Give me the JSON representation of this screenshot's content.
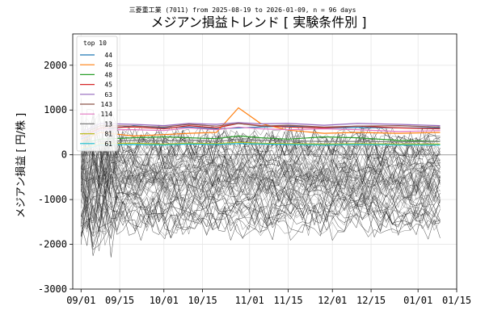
{
  "chart_data": {
    "type": "line",
    "subtitle": "三菱重工業 (7011) from 2025-08-19 to 2026-01-09, n = 96 days",
    "title": "メジアン損益トレンド [ 実験条件別 ]",
    "ylabel": "メジアン損益 [ 円/株 ]",
    "xlabel": "",
    "ylim": [
      -3000,
      2700
    ],
    "yticks": [
      2000,
      1000,
      0,
      -1000,
      -2000,
      -3000
    ],
    "xticks": [
      "09/01",
      "09/15",
      "10/01",
      "10/15",
      "11/01",
      "11/15",
      "12/01",
      "12/15",
      "01/01",
      "01/15"
    ],
    "x_range": [
      "2025-08-29",
      "2026-01-15"
    ],
    "grid": true,
    "legend": {
      "title": "top 10",
      "placement": "top-left"
    },
    "series": [
      {
        "name": "44",
        "color": "#1f77b4",
        "values": [
          350,
          550,
          650,
          600,
          620,
          580,
          600,
          620,
          640,
          600,
          610,
          600,
          600
        ]
      },
      {
        "name": "46",
        "color": "#ff7f0e",
        "values": [
          300,
          500,
          420,
          450,
          480,
          500,
          1050,
          700,
          550,
          480,
          500,
          480,
          500
        ]
      },
      {
        "name": "48",
        "color": "#2ca02c",
        "values": [
          250,
          350,
          380,
          400,
          380,
          360,
          420,
          380,
          350,
          400,
          380,
          320,
          300
        ]
      },
      {
        "name": "45",
        "color": "#d62728",
        "values": [
          400,
          600,
          620,
          580,
          650,
          600,
          700,
          650,
          620,
          600,
          640,
          600,
          580
        ]
      },
      {
        "name": "63",
        "color": "#9467bd",
        "values": [
          500,
          700,
          680,
          650,
          700,
          680,
          720,
          690,
          700,
          660,
          700,
          680,
          650
        ]
      },
      {
        "name": "143",
        "color": "#8c564b",
        "values": [
          450,
          650,
          640,
          620,
          680,
          640,
          700,
          640,
          660,
          620,
          640,
          650,
          620
        ]
      },
      {
        "name": "114",
        "color": "#e377c2",
        "values": [
          380,
          560,
          560,
          540,
          600,
          560,
          620,
          580,
          560,
          580,
          560,
          520,
          540
        ]
      },
      {
        "name": "13",
        "color": "#7f7f7f",
        "values": [
          200,
          300,
          320,
          310,
          330,
          300,
          340,
          320,
          310,
          300,
          300,
          290,
          300
        ]
      },
      {
        "name": "81",
        "color": "#bcbd22",
        "values": [
          150,
          250,
          260,
          240,
          260,
          250,
          280,
          260,
          250,
          240,
          250,
          240,
          240
        ]
      },
      {
        "name": "61",
        "color": "#17becf",
        "values": [
          100,
          220,
          230,
          220,
          240,
          230,
          250,
          240,
          230,
          220,
          230,
          220,
          220
        ]
      }
    ],
    "series_dates": [
      "2025-09-01",
      "2025-09-08",
      "2025-09-20",
      "2025-10-01",
      "2025-10-10",
      "2025-10-20",
      "2025-10-28",
      "2025-11-05",
      "2025-11-15",
      "2025-11-28",
      "2025-12-10",
      "2025-12-25",
      "2026-01-09"
    ]
  }
}
